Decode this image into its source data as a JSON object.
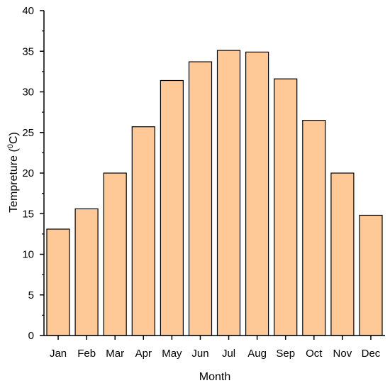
{
  "chart_data": {
    "type": "bar",
    "title": "",
    "xlabel": "Month",
    "ylabel": "Tempreture (",
    "ylabel_sup": "0",
    "ylabel_suffix": "C)",
    "categories": [
      "Jan",
      "Feb",
      "Mar",
      "Apr",
      "May",
      "Jun",
      "Jul",
      "Aug",
      "Sep",
      "Oct",
      "Nov",
      "Dec"
    ],
    "values": [
      13.1,
      15.6,
      20.0,
      25.7,
      31.4,
      33.7,
      35.1,
      34.9,
      31.6,
      26.5,
      20.0,
      14.8
    ],
    "ylim": [
      0,
      40
    ],
    "yticks": [
      "0",
      "5",
      "10",
      "15",
      "20",
      "25",
      "30",
      "35",
      "40"
    ],
    "grid": false,
    "legend": false,
    "colors": {
      "bar_fill": "#FFC896",
      "bar_stroke": "#000000",
      "axis": "#000000"
    }
  }
}
